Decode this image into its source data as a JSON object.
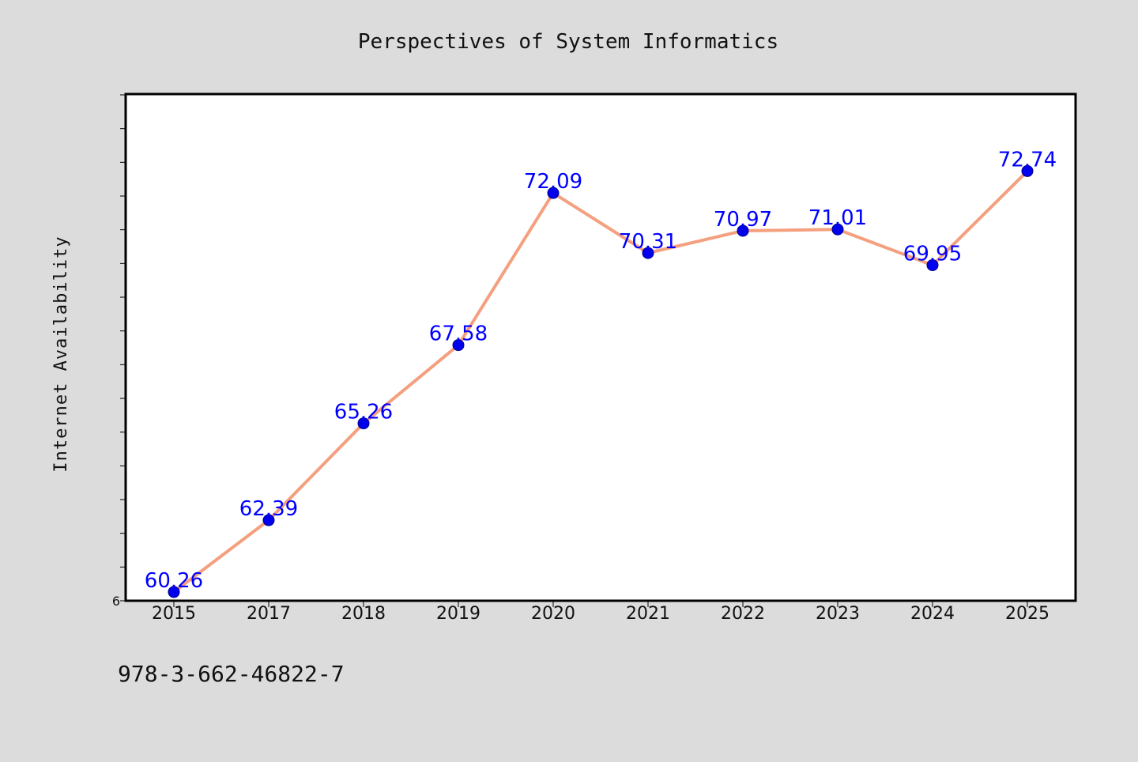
{
  "colors": {
    "background": "#dcdcdc",
    "plot_background": "#ffffff",
    "line": "#f4a07f",
    "marker": "#0000ee",
    "marker_edge": "#00008b",
    "data_label": "#0000ff",
    "axis": "#000000"
  },
  "footnote": "978-3-662-46822-7",
  "chart_data": {
    "type": "line",
    "title": "Perspectives of System Informatics",
    "xlabel": "",
    "ylabel": "Internet Availability",
    "categories": [
      "2015",
      "2017",
      "2018",
      "2019",
      "2020",
      "2021",
      "2022",
      "2023",
      "2024",
      "2025"
    ],
    "series": [
      {
        "values": [
          60.26,
          62.39,
          65.26,
          67.58,
          72.09,
          70.31,
          70.97,
          71.01,
          69.95,
          72.74
        ]
      }
    ],
    "data_labels": [
      "60.26",
      "62.39",
      "65.26",
      "67.58",
      "72.09",
      "70.31",
      "70.97",
      "71.01",
      "69.95",
      "72.74"
    ],
    "ylim": [
      60,
      75
    ],
    "y_tick_labels": [
      "6"
    ],
    "y_minor_tick_step": 1,
    "grid": false,
    "legend": "none"
  }
}
